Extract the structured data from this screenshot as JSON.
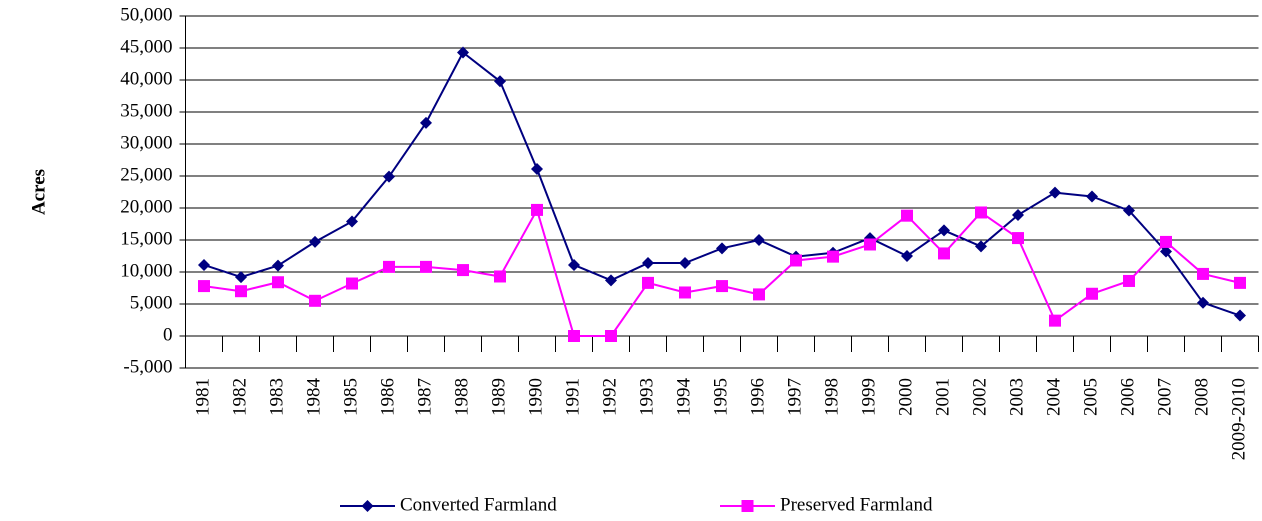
{
  "chart_data": {
    "type": "line",
    "y_label": "Acres",
    "categories": [
      "1981",
      "1982",
      "1983",
      "1984",
      "1985",
      "1986",
      "1987",
      "1988",
      "1989",
      "1990",
      "1991",
      "1992",
      "1993",
      "1994",
      "1995",
      "1996",
      "1997",
      "1998",
      "1999",
      "2000",
      "2001",
      "2002",
      "2003",
      "2004",
      "2005",
      "2006",
      "2007",
      "2008",
      "2009-2010"
    ],
    "series": [
      {
        "name": "Converted Farmland",
        "color": "#000080",
        "marker": "diamond",
        "values": [
          11100,
          9200,
          11000,
          14700,
          17900,
          24900,
          33300,
          44300,
          39800,
          26100,
          11100,
          8700,
          11400,
          11400,
          13700,
          15000,
          12400,
          13000,
          15300,
          12500,
          16500,
          14000,
          18900,
          22400,
          21800,
          19600,
          13200,
          5200,
          3200
        ]
      },
      {
        "name": "Preserved Farmland",
        "color": "#ff00ff",
        "marker": "square",
        "values": [
          7800,
          7000,
          8400,
          5500,
          8200,
          10800,
          10800,
          10300,
          9300,
          19700,
          0,
          0,
          8300,
          6800,
          7800,
          6500,
          11800,
          12400,
          14300,
          18800,
          12900,
          19300,
          15300,
          2400,
          6600,
          8600,
          14700,
          9700,
          8300
        ]
      }
    ],
    "ylim": [
      -5000,
      50000
    ],
    "yticks": [
      {
        "value": -5000,
        "label": "-5,000"
      },
      0,
      {
        "value": 5000,
        "label": "5,000"
      },
      {
        "value": 10000,
        "label": "10,000"
      },
      {
        "value": 15000,
        "label": "15,000"
      },
      {
        "value": 20000,
        "label": "20,000"
      },
      {
        "value": 25000,
        "label": "25,000"
      },
      {
        "value": 30000,
        "label": "30,000"
      },
      {
        "value": 35000,
        "label": "35,000"
      },
      {
        "value": 40000,
        "label": "40,000"
      },
      {
        "value": 45000,
        "label": "45,000"
      },
      {
        "value": 50000,
        "label": "50,000"
      }
    ],
    "grid": true,
    "legend": "bottom"
  }
}
